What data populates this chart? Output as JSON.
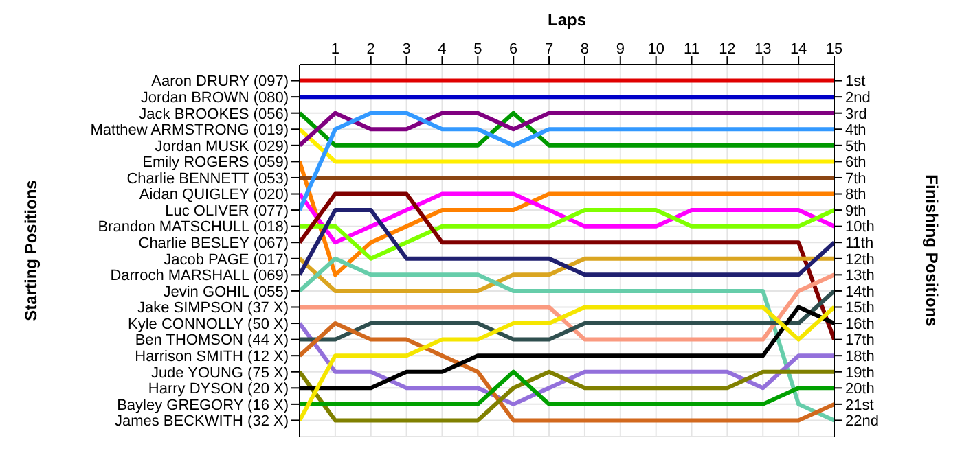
{
  "chart_data": {
    "type": "line",
    "xlabel": "Laps",
    "ylabel": "Finishing Positions",
    "annotations": [
      "Starting Positions"
    ],
    "x": [
      0,
      1,
      2,
      3,
      4,
      5,
      6,
      7,
      8,
      9,
      10,
      11,
      12,
      13,
      14,
      15
    ],
    "xlim": [
      0,
      15
    ],
    "xticks": [
      1,
      2,
      3,
      4,
      5,
      6,
      7,
      8,
      9,
      10,
      11,
      12,
      13,
      14,
      15
    ],
    "ylim": [
      23,
      0
    ],
    "y_categories": [
      "Aaron DRURY (097)",
      "Jordan BROWN (080)",
      "Jack BROOKES (056)",
      "Matthew ARMSTRONG (019)",
      "Jordan MUSK (029)",
      "Emily ROGERS (059)",
      "Charlie BENNETT (053)",
      "Aidan QUIGLEY (020)",
      "Luc OLIVER (077)",
      "Brandon MATSCHULL (018)",
      "Charlie BESLEY (067)",
      "Jacob PAGE (017)",
      "Darroch MARSHALL (069)",
      "Jevin GOHIL (055)",
      "Jake SIMPSON (37 X)",
      "Kyle CONNOLLY (50 X)",
      "Ben THOMSON (44 X)",
      "Harrison SMITH (12 X)",
      "Jude YOUNG (75 X)",
      "Harry DYSON (20 X)",
      "Bayley GREGORY (16 X)",
      "James BECKWITH (32 X)"
    ],
    "yticks": [
      {
        "value": 1,
        "label": "1st"
      },
      {
        "value": 2,
        "label": "2nd"
      },
      {
        "value": 3,
        "label": "3rd"
      },
      {
        "value": 4,
        "label": "4th"
      },
      {
        "value": 5,
        "label": "5th"
      },
      {
        "value": 6,
        "label": "6th"
      },
      {
        "value": 7,
        "label": "7th"
      },
      {
        "value": 8,
        "label": "8th"
      },
      {
        "value": 9,
        "label": "9th"
      },
      {
        "value": 10,
        "label": "10th"
      },
      {
        "value": 11,
        "label": "11th"
      },
      {
        "value": 12,
        "label": "12th"
      },
      {
        "value": 13,
        "label": "13th"
      },
      {
        "value": 14,
        "label": "14th"
      },
      {
        "value": 15,
        "label": "15th"
      },
      {
        "value": 16,
        "label": "16th"
      },
      {
        "value": 17,
        "label": "17th"
      },
      {
        "value": 18,
        "label": "18th"
      },
      {
        "value": 19,
        "label": "19th"
      },
      {
        "value": 20,
        "label": "20th"
      },
      {
        "value": 21,
        "label": "21st"
      },
      {
        "value": 22,
        "label": "22nd"
      }
    ],
    "grid": true,
    "marker": "none",
    "line_style": "solid",
    "series": [
      {
        "color": "#e00000",
        "values": [
          1,
          1,
          1,
          1,
          1,
          1,
          1,
          1,
          1,
          1,
          1,
          1,
          1,
          1,
          1,
          1
        ]
      },
      {
        "color": "#0000c8",
        "values": [
          2,
          2,
          2,
          2,
          2,
          2,
          2,
          2,
          2,
          2,
          2,
          2,
          2,
          2,
          2,
          2
        ]
      },
      {
        "color": "#009900",
        "values": [
          3,
          5,
          5,
          5,
          5,
          5,
          3,
          5,
          5,
          5,
          5,
          5,
          5,
          5,
          5,
          5
        ]
      },
      {
        "color": "#ffee00",
        "values": [
          4,
          6,
          6,
          6,
          6,
          6,
          6,
          6,
          6,
          6,
          6,
          6,
          6,
          6,
          6,
          6
        ]
      },
      {
        "color": "#800080",
        "values": [
          5,
          3,
          4,
          4,
          3,
          3,
          4,
          3,
          3,
          3,
          3,
          3,
          3,
          3,
          3,
          3
        ]
      },
      {
        "color": "#ff8000",
        "values": [
          6,
          13,
          11,
          10,
          9,
          9,
          9,
          8,
          8,
          8,
          8,
          8,
          8,
          8,
          8,
          8
        ]
      },
      {
        "color": "#8b4513",
        "values": [
          7,
          7,
          7,
          7,
          7,
          7,
          7,
          7,
          7,
          7,
          7,
          7,
          7,
          7,
          7,
          7
        ]
      },
      {
        "color": "#ff00ff",
        "values": [
          8,
          11,
          10,
          9,
          8,
          8,
          8,
          9,
          10,
          10,
          10,
          9,
          9,
          9,
          9,
          10
        ]
      },
      {
        "color": "#3399ff",
        "values": [
          9,
          4,
          3,
          3,
          4,
          4,
          5,
          4,
          4,
          4,
          4,
          4,
          4,
          4,
          4,
          4
        ]
      },
      {
        "color": "#80ff00",
        "values": [
          10,
          10,
          12,
          11,
          10,
          10,
          10,
          10,
          9,
          9,
          9,
          10,
          10,
          10,
          10,
          9
        ]
      },
      {
        "color": "#800000",
        "values": [
          11,
          8,
          8,
          8,
          11,
          11,
          11,
          11,
          11,
          11,
          11,
          11,
          11,
          11,
          11,
          17
        ]
      },
      {
        "color": "#daa520",
        "values": [
          12,
          14,
          14,
          14,
          14,
          14,
          13,
          13,
          12,
          12,
          12,
          12,
          12,
          12,
          12,
          12
        ]
      },
      {
        "color": "#202070",
        "values": [
          13,
          9,
          9,
          12,
          12,
          12,
          12,
          12,
          13,
          13,
          13,
          13,
          13,
          13,
          13,
          11
        ]
      },
      {
        "color": "#66cdaa",
        "values": [
          14,
          12,
          13,
          13,
          13,
          13,
          14,
          14,
          14,
          14,
          14,
          14,
          14,
          14,
          21,
          22
        ]
      },
      {
        "color": "#fa9a80",
        "values": [
          15,
          15,
          15,
          15,
          15,
          15,
          15,
          15,
          17,
          17,
          17,
          17,
          17,
          17,
          14,
          13
        ]
      },
      {
        "color": "#9370db",
        "values": [
          16,
          19,
          19,
          20,
          20,
          20,
          21,
          20,
          19,
          19,
          19,
          19,
          19,
          20,
          18,
          18
        ]
      },
      {
        "color": "#2f4f4f",
        "values": [
          17,
          17,
          16,
          16,
          16,
          16,
          17,
          17,
          16,
          16,
          16,
          16,
          16,
          16,
          16,
          14
        ]
      },
      {
        "color": "#d2691e",
        "values": [
          18,
          16,
          17,
          17,
          18,
          19,
          22,
          22,
          22,
          22,
          22,
          22,
          22,
          22,
          22,
          21
        ]
      },
      {
        "color": "#808000",
        "values": [
          19,
          22,
          22,
          22,
          22,
          22,
          20,
          19,
          20,
          20,
          20,
          20,
          20,
          19,
          19,
          19
        ]
      },
      {
        "color": "#000000",
        "values": [
          20,
          20,
          20,
          19,
          19,
          18,
          18,
          18,
          18,
          18,
          18,
          18,
          18,
          18,
          15,
          16
        ]
      },
      {
        "color": "#00a000",
        "values": [
          21,
          21,
          21,
          21,
          21,
          21,
          19,
          21,
          21,
          21,
          21,
          21,
          21,
          21,
          20,
          20
        ]
      },
      {
        "color": "#f5e600",
        "values": [
          22,
          18,
          18,
          18,
          17,
          17,
          16,
          16,
          15,
          15,
          15,
          15,
          15,
          15,
          17,
          15
        ]
      }
    ]
  }
}
